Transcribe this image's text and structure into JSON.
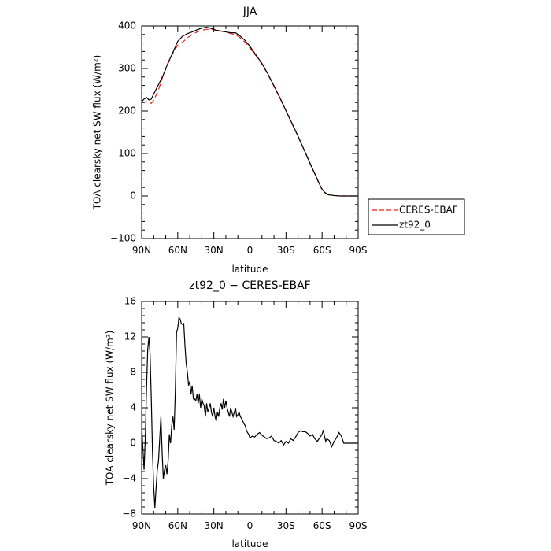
{
  "chart_data": [
    {
      "type": "line",
      "title": "JJA",
      "xlabel": "latitude",
      "ylabel": "TOA clearsky net SW flux (W/m²)",
      "xlim": [
        90,
        -90
      ],
      "ylim": [
        -100,
        400
      ],
      "x_ticks": [
        90,
        60,
        30,
        0,
        -30,
        -60,
        -90
      ],
      "x_tick_labels": [
        "90N",
        "60N",
        "30N",
        "0",
        "30S",
        "60S",
        "90S"
      ],
      "y_ticks": [
        -100,
        0,
        100,
        200,
        300,
        400
      ],
      "y_tick_labels": [
        "−100",
        "0",
        "100",
        "200",
        "300",
        "400"
      ],
      "grid": false,
      "legend_position": "outside-right",
      "series": [
        {
          "name": "CERES-EBAF",
          "color": "#e8221d",
          "dash": "dashed",
          "x": [
            90,
            86,
            82,
            80,
            76,
            72,
            68,
            64,
            60,
            56,
            52,
            48,
            44,
            40,
            36,
            32,
            28,
            24,
            20,
            16,
            12,
            8,
            4,
            0,
            -5,
            -10,
            -15,
            -20,
            -25,
            -30,
            -35,
            -40,
            -45,
            -50,
            -55,
            -58,
            -60,
            -62,
            -65,
            -70,
            -75,
            -80,
            -85,
            -90
          ],
          "y": [
            220,
            222,
            218,
            225,
            250,
            285,
            312,
            336,
            355,
            362,
            372,
            380,
            386,
            390,
            392,
            392,
            390,
            388,
            386,
            382,
            380,
            372,
            362,
            348,
            330,
            310,
            286,
            258,
            230,
            200,
            170,
            140,
            108,
            76,
            45,
            26,
            15,
            8,
            3,
            1,
            0,
            0,
            0,
            0
          ]
        },
        {
          "name": "zt92_0",
          "color": "#000000",
          "dash": "solid",
          "x": [
            90,
            88,
            86,
            84,
            82,
            80,
            76,
            72,
            68,
            64,
            60,
            56,
            52,
            48,
            44,
            40,
            36,
            32,
            28,
            24,
            20,
            16,
            12,
            8,
            4,
            0,
            -5,
            -10,
            -15,
            -20,
            -25,
            -30,
            -35,
            -40,
            -45,
            -50,
            -55,
            -58,
            -60,
            -62,
            -65,
            -70,
            -75,
            -80,
            -85,
            -90
          ],
          "y": [
            222,
            228,
            232,
            226,
            228,
            240,
            262,
            285,
            314,
            338,
            364,
            376,
            382,
            386,
            391,
            395,
            397,
            394,
            390,
            388,
            386,
            384,
            384,
            376,
            366,
            352,
            332,
            312,
            287,
            259,
            231,
            201,
            171,
            141,
            109,
            77,
            46,
            27,
            16,
            9,
            3,
            1,
            0,
            0,
            0,
            0
          ]
        }
      ]
    },
    {
      "type": "line",
      "title": "zt92_0 − CERES-EBAF",
      "xlabel": "latitude",
      "ylabel": "TOA clearsky net SW flux (W/m²)",
      "xlim": [
        90,
        -90
      ],
      "ylim": [
        -8,
        16
      ],
      "x_ticks": [
        90,
        60,
        30,
        0,
        -30,
        -60,
        -90
      ],
      "x_tick_labels": [
        "90N",
        "60N",
        "30N",
        "0",
        "30S",
        "60S",
        "90S"
      ],
      "y_ticks": [
        -8,
        -4,
        0,
        4,
        8,
        12,
        16
      ],
      "y_tick_labels": [
        "−8",
        "−4",
        "0",
        "4",
        "8",
        "12",
        "16"
      ],
      "grid": false,
      "series": [
        {
          "name": "",
          "color": "#000000",
          "dash": "solid",
          "x": [
            90,
            89,
            88,
            87,
            86,
            85,
            84,
            83,
            82,
            81,
            80,
            79,
            78,
            77,
            76,
            75,
            74,
            73,
            72,
            71,
            70,
            69,
            68,
            67,
            66,
            65,
            64,
            63,
            62,
            61,
            60,
            59,
            58,
            57,
            56,
            55,
            54,
            53,
            52,
            51,
            50,
            49,
            48,
            47,
            46,
            45,
            44,
            43,
            42,
            41,
            40,
            39,
            38,
            37,
            36,
            35,
            34,
            33,
            32,
            31,
            30,
            29,
            28,
            27,
            26,
            25,
            24,
            23,
            22,
            21,
            20,
            19,
            18,
            17,
            16,
            15,
            14,
            13,
            12,
            11,
            10,
            9,
            8,
            7,
            6,
            5,
            4,
            3,
            2,
            1,
            0,
            -2,
            -4,
            -6,
            -8,
            -10,
            -12,
            -14,
            -16,
            -18,
            -20,
            -22,
            -24,
            -26,
            -28,
            -30,
            -32,
            -34,
            -36,
            -38,
            -40,
            -42,
            -44,
            -46,
            -48,
            -50,
            -52,
            -54,
            -56,
            -58,
            -60,
            -61,
            -62,
            -63,
            -64,
            -66,
            -68,
            -70,
            -72,
            -74,
            -76,
            -78,
            -80,
            -82,
            -84,
            -86,
            -88,
            -90
          ],
          "y": [
            2.0,
            -0.5,
            -3.0,
            0.5,
            6.0,
            10.5,
            12.0,
            10.0,
            5.0,
            -1.0,
            -5.0,
            -7.3,
            -5.0,
            -3.0,
            -2.0,
            0.5,
            3.0,
            -1.0,
            -4.0,
            -3.0,
            -2.5,
            -3.5,
            -2.0,
            1.0,
            0.0,
            2.0,
            3.0,
            1.5,
            6.0,
            12.5,
            13.0,
            14.2,
            14.0,
            13.5,
            13.4,
            13.5,
            11.0,
            9.0,
            8.0,
            6.5,
            7.0,
            5.5,
            6.5,
            5.0,
            5.0,
            4.8,
            5.5,
            4.5,
            5.5,
            4.0,
            5.0,
            4.5,
            4.2,
            3.0,
            4.5,
            3.5,
            4.0,
            4.5,
            3.5,
            3.0,
            4.0,
            3.0,
            2.5,
            3.5,
            3.0,
            4.0,
            4.5,
            3.8,
            5.0,
            4.0,
            4.8,
            4.0,
            3.5,
            3.0,
            4.0,
            3.5,
            3.0,
            3.5,
            4.0,
            3.0,
            3.2,
            3.5,
            3.0,
            2.8,
            2.5,
            2.2,
            2.0,
            1.5,
            1.2,
            1.0,
            0.6,
            0.8,
            0.7,
            1.0,
            1.2,
            0.9,
            0.7,
            0.5,
            0.6,
            0.8,
            0.3,
            0.2,
            0.0,
            0.3,
            -0.2,
            0.2,
            0.0,
            0.5,
            0.3,
            0.7,
            1.2,
            1.4,
            1.3,
            1.3,
            1.1,
            0.8,
            1.0,
            0.5,
            0.2,
            0.6,
            1.0,
            1.5,
            0.8,
            0.2,
            0.5,
            0.3,
            -0.4,
            0.2,
            0.6,
            1.2,
            0.8,
            0.0,
            0.0,
            0.0,
            0.0,
            0.0,
            0.0,
            0.0
          ]
        }
      ]
    }
  ]
}
